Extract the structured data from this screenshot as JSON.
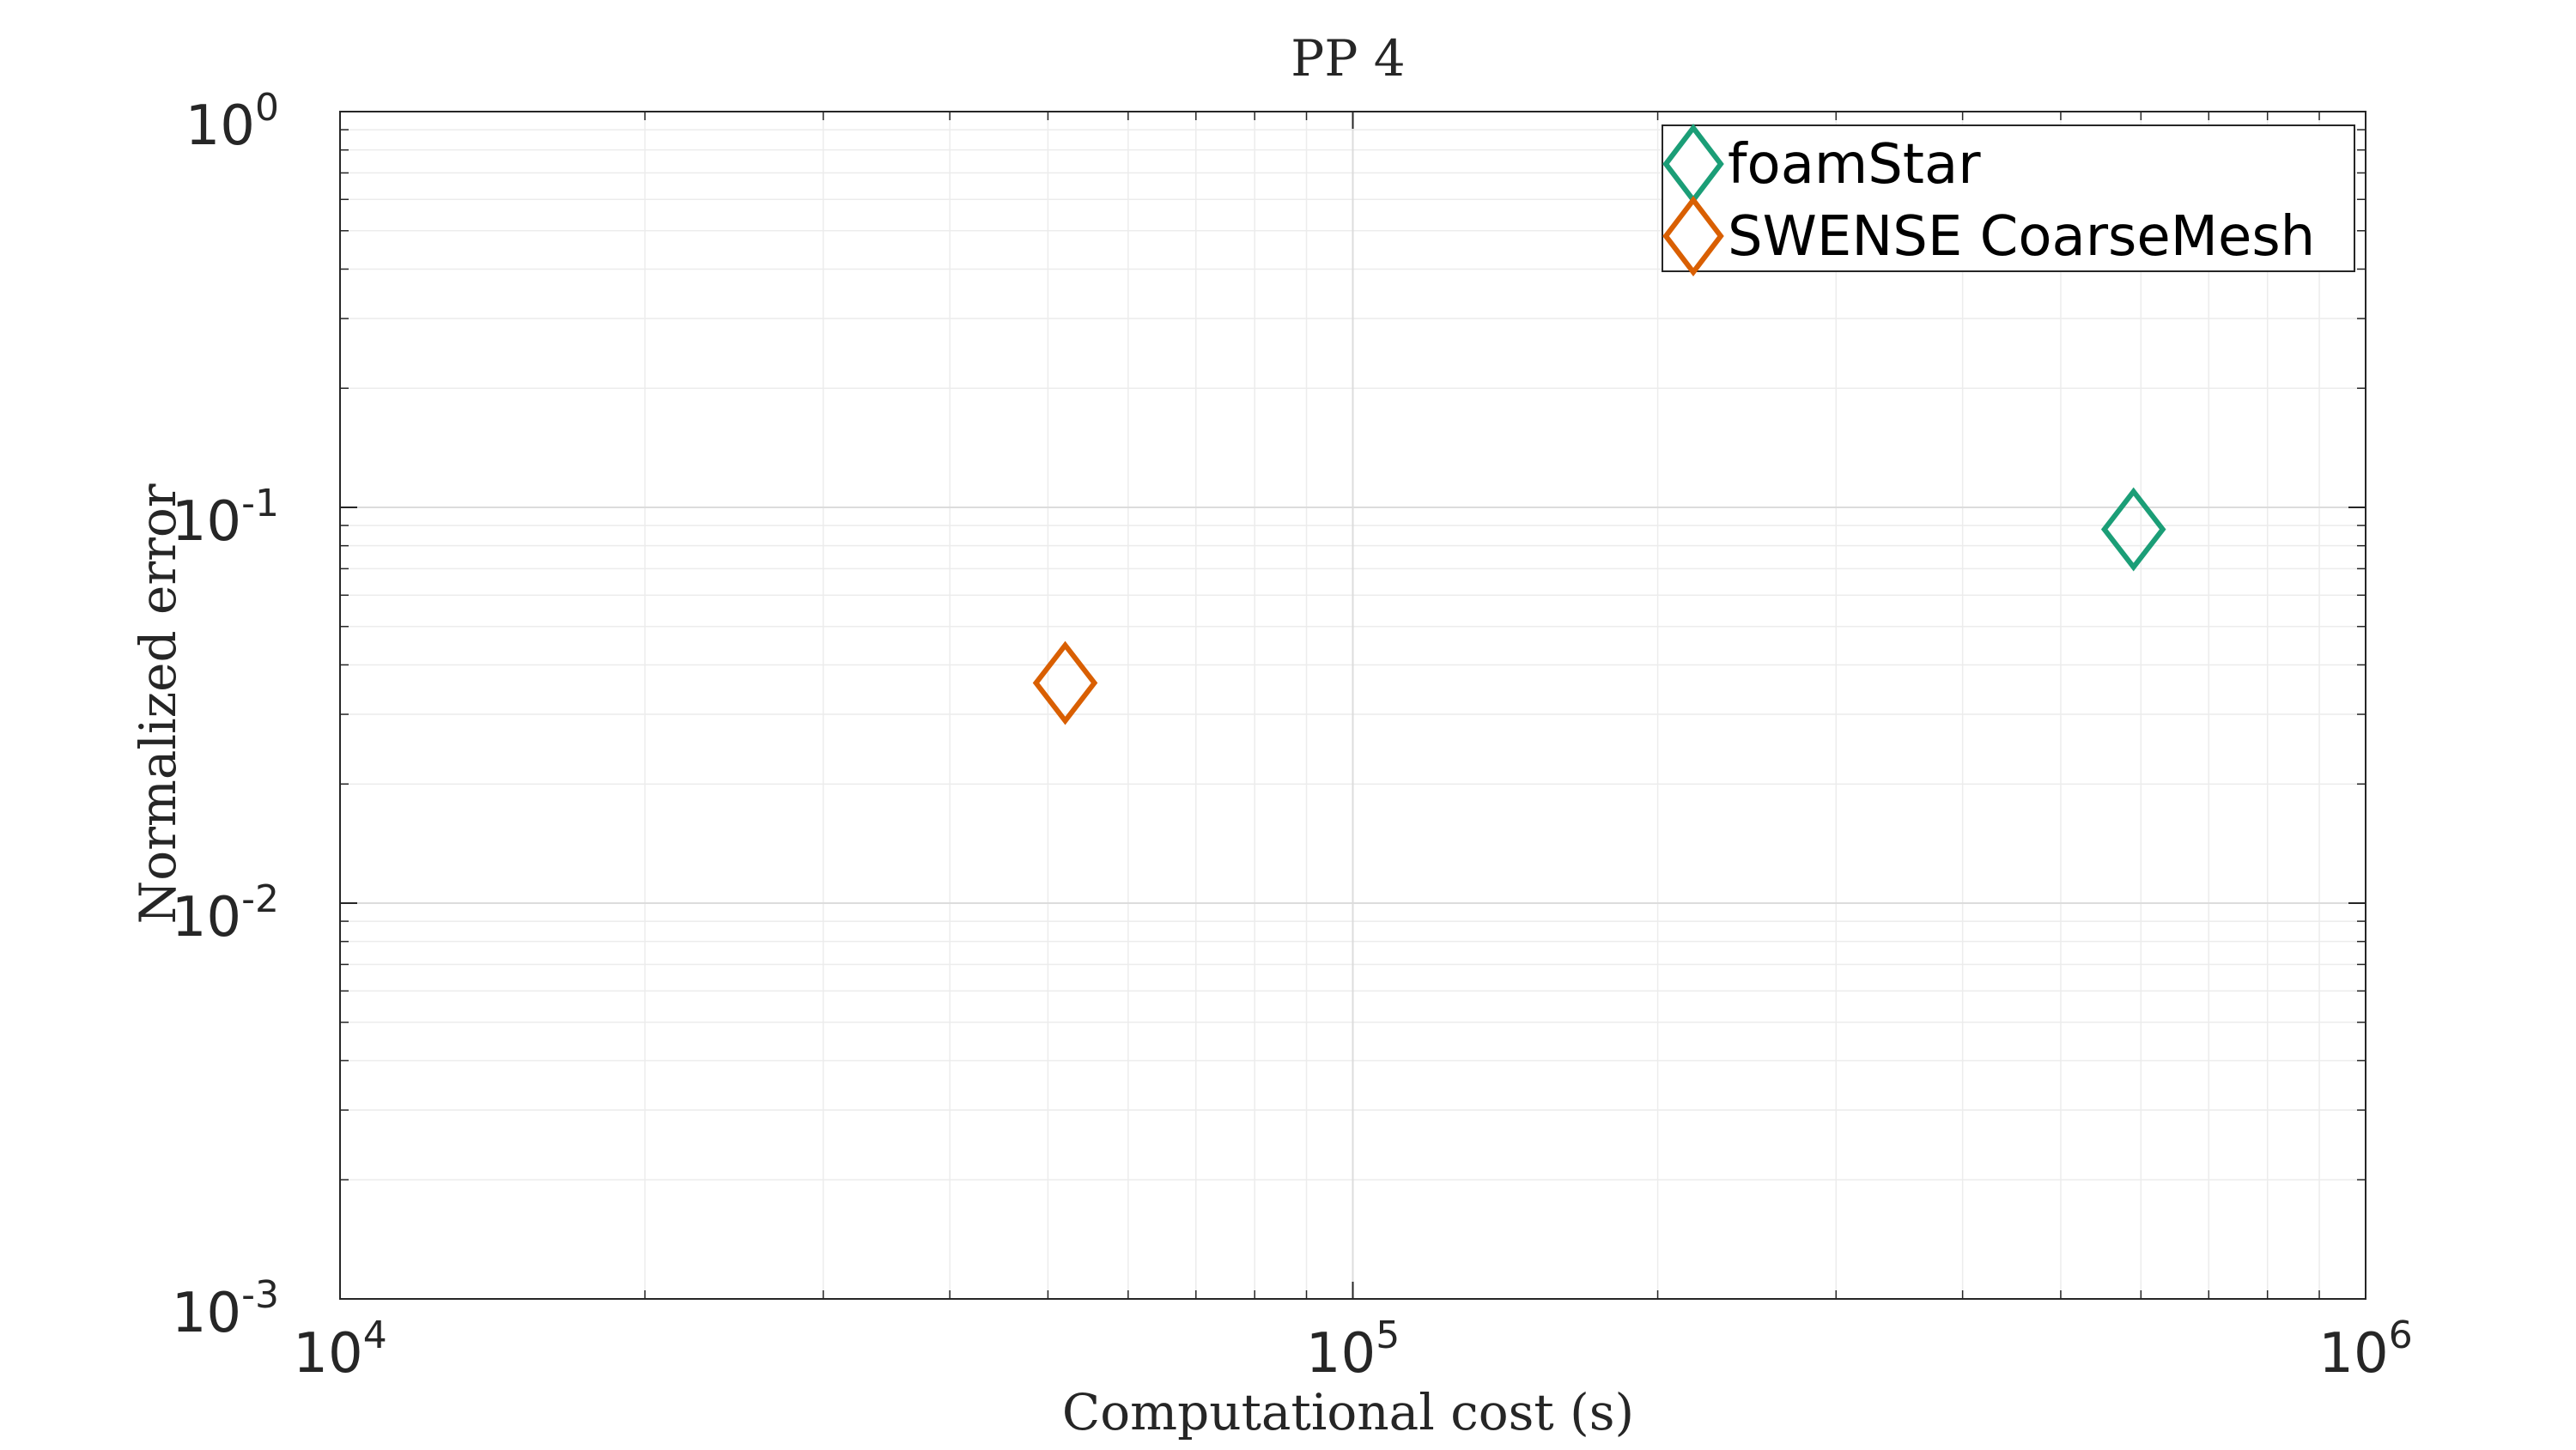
{
  "chart_data": {
    "type": "scatter",
    "title": "PP 4",
    "xlabel": "Computational cost (s)",
    "ylabel": "Normalized error",
    "xscale": "log",
    "yscale": "log",
    "xlim": [
      10000,
      1000000
    ],
    "ylim": [
      0.001,
      1
    ],
    "grid": true,
    "legend_position": "top-right",
    "x_ticks": [
      {
        "value": 10000,
        "base": "10",
        "exp": "4"
      },
      {
        "value": 100000,
        "base": "10",
        "exp": "5"
      },
      {
        "value": 1000000,
        "base": "10",
        "exp": "6"
      }
    ],
    "y_ticks": [
      {
        "value": 1,
        "base": "10",
        "exp": "0"
      },
      {
        "value": 0.1,
        "base": "10",
        "exp": "-1"
      },
      {
        "value": 0.01,
        "base": "10",
        "exp": "-2"
      },
      {
        "value": 0.001,
        "base": "10",
        "exp": "-3"
      }
    ],
    "series": [
      {
        "name": "foamStar",
        "color": "#1b9e77",
        "marker": "diamond",
        "x": [
          590000
        ],
        "y": [
          0.088
        ]
      },
      {
        "name": "SWENSE CoarseMesh",
        "color": "#d95f02",
        "marker": "diamond",
        "x": [
          52000
        ],
        "y": [
          0.036
        ]
      }
    ]
  }
}
